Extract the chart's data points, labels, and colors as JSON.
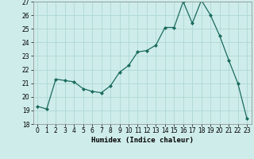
{
  "x": [
    0,
    1,
    2,
    3,
    4,
    5,
    6,
    7,
    8,
    9,
    10,
    11,
    12,
    13,
    14,
    15,
    16,
    17,
    18,
    19,
    20,
    21,
    22,
    23
  ],
  "y": [
    19.3,
    19.1,
    21.3,
    21.2,
    21.1,
    20.6,
    20.4,
    20.3,
    20.8,
    21.8,
    22.3,
    23.3,
    23.4,
    23.8,
    25.1,
    25.1,
    27.0,
    25.4,
    27.1,
    26.0,
    24.5,
    22.7,
    21.0,
    18.4
  ],
  "line_color": "#1a6b5e",
  "marker": "D",
  "marker_size": 2,
  "background_color": "#ceecea",
  "grid_color": "#aed8d4",
  "xlabel": "Humidex (Indice chaleur)",
  "ylim": [
    18,
    27
  ],
  "xlim": [
    -0.5,
    23.5
  ],
  "yticks": [
    18,
    19,
    20,
    21,
    22,
    23,
    24,
    25,
    26,
    27
  ],
  "xticks": [
    0,
    1,
    2,
    3,
    4,
    5,
    6,
    7,
    8,
    9,
    10,
    11,
    12,
    13,
    14,
    15,
    16,
    17,
    18,
    19,
    20,
    21,
    22,
    23
  ],
  "xlabel_fontsize": 6.5,
  "tick_fontsize": 5.5
}
